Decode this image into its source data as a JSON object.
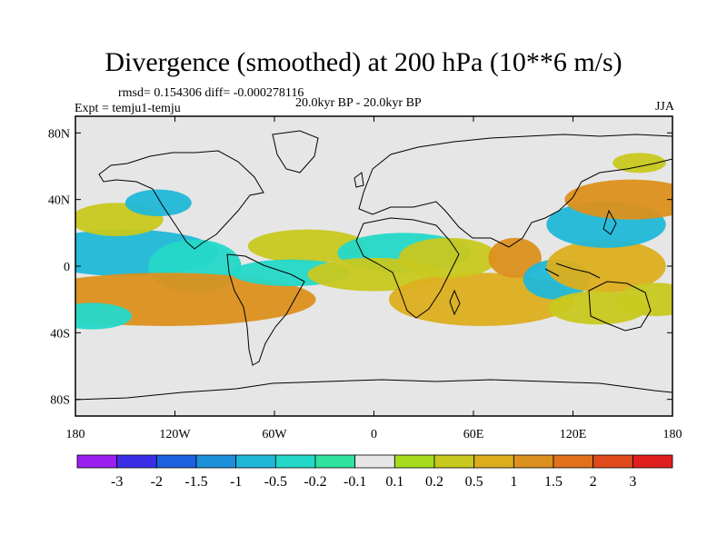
{
  "title": "Divergence (smoothed) at 200 hPa (10**6 m/s)",
  "stats": "rmsd= 0.154306 diff= -0.000278116",
  "period": "20.0kyr BP - 20.0kyr BP",
  "experiment": "Expt = temju1-temju",
  "season": "JJA",
  "colors": {
    "background_field": "#e6e6e6",
    "frame": "#000000",
    "coastline": "#000000"
  },
  "chart_data": {
    "type": "contour-map",
    "title": "Divergence (smoothed) at 200 hPa (10**6 m/s)",
    "lon_range": [
      -180,
      180
    ],
    "lat_range": [
      -90,
      90
    ],
    "x_ticks": [
      {
        "lon": -180,
        "label": "180"
      },
      {
        "lon": -120,
        "label": "120W"
      },
      {
        "lon": -60,
        "label": "60W"
      },
      {
        "lon": 0,
        "label": "0"
      },
      {
        "lon": 60,
        "label": "60E"
      },
      {
        "lon": 120,
        "label": "120E"
      },
      {
        "lon": 180,
        "label": "180"
      }
    ],
    "y_ticks": [
      {
        "lat": 80,
        "label": "80N"
      },
      {
        "lat": 40,
        "label": "40N"
      },
      {
        "lat": 0,
        "label": "0"
      },
      {
        "lat": -40,
        "label": "40S"
      },
      {
        "lat": -80,
        "label": "80S"
      }
    ],
    "colorbar": {
      "colors": [
        "#9b1ff0",
        "#3a2ee6",
        "#1c62e0",
        "#1e8fdb",
        "#20b8d8",
        "#24d8c8",
        "#2ee2a0",
        "#e6e6e6",
        "#a6dc1e",
        "#c8c81e",
        "#dcae1e",
        "#dc901e",
        "#e0701c",
        "#e04a1c",
        "#e01e1e"
      ],
      "labels": [
        "-3",
        "-2",
        "-1.5",
        "-1",
        "-0.5",
        "-0.2",
        "-0.1",
        "0.1",
        "0.2",
        "0.5",
        "1",
        "1.5",
        "2",
        "3"
      ]
    },
    "regions": [
      {
        "name": "east-pacific-conv-north",
        "lon": -150,
        "lat": 8,
        "rlon": 28,
        "rlat": 7,
        "level": 4
      },
      {
        "name": "central-america-conv",
        "lon": -108,
        "lat": 0,
        "rlon": 14,
        "rlat": 8,
        "level": 5
      },
      {
        "name": "south-pacific-div-band",
        "lon": -125,
        "lat": -20,
        "rlon": 45,
        "rlat": 8,
        "level": 11
      },
      {
        "name": "north-pacific-div",
        "lon": -155,
        "lat": 28,
        "rlon": 14,
        "rlat": 5,
        "level": 9
      },
      {
        "name": "pacific-conv-30n",
        "lon": -130,
        "lat": 38,
        "rlon": 10,
        "rlat": 4,
        "level": 4
      },
      {
        "name": "atlantic-div",
        "lon": -40,
        "lat": 12,
        "rlon": 18,
        "rlat": 5,
        "level": 9
      },
      {
        "name": "south-atlantic-conv",
        "lon": -50,
        "lat": -4,
        "rlon": 18,
        "rlat": 4,
        "level": 5
      },
      {
        "name": "africa-conv",
        "lon": 18,
        "lat": 8,
        "rlon": 20,
        "rlat": 6,
        "level": 5
      },
      {
        "name": "africa-div",
        "lon": 0,
        "lat": -5,
        "rlon": 20,
        "rlat": 5,
        "level": 9
      },
      {
        "name": "indian-ocean-div",
        "lon": 65,
        "lat": -20,
        "rlon": 28,
        "rlat": 8,
        "level": 10
      },
      {
        "name": "arabian-div",
        "lon": 45,
        "lat": 5,
        "rlon": 15,
        "rlat": 6,
        "level": 9
      },
      {
        "name": "bay-bengal-div",
        "lon": 85,
        "lat": 5,
        "rlon": 8,
        "rlat": 6,
        "level": 11
      },
      {
        "name": "indonesia-conv",
        "lon": 110,
        "lat": -8,
        "rlon": 10,
        "rlat": 6,
        "level": 4
      },
      {
        "name": "west-pacific-div",
        "lon": 140,
        "lat": 0,
        "rlon": 18,
        "rlat": 8,
        "level": 10
      },
      {
        "name": "nw-pacific-conv",
        "lon": 140,
        "lat": 25,
        "rlon": 18,
        "rlat": 7,
        "level": 4
      },
      {
        "name": "nw-pacific-div",
        "lon": 155,
        "lat": 40,
        "rlon": 20,
        "rlat": 6,
        "level": 11
      },
      {
        "name": "kamchatka-div",
        "lon": 160,
        "lat": 62,
        "rlon": 8,
        "rlat": 3,
        "level": 9
      },
      {
        "name": "australia-div",
        "lon": 135,
        "lat": -25,
        "rlon": 15,
        "rlat": 5,
        "level": 9
      },
      {
        "name": "south-pacific-conv",
        "lon": -170,
        "lat": -30,
        "rlon": 12,
        "rlat": 4,
        "level": 5
      },
      {
        "name": "west-south-pacific-div",
        "lon": 170,
        "lat": -20,
        "rlon": 12,
        "rlat": 5,
        "level": 9
      }
    ]
  }
}
